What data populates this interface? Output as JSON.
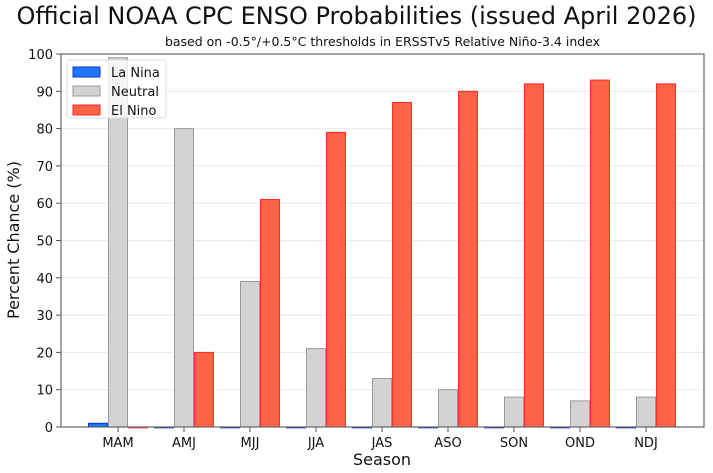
{
  "chart_data": {
    "type": "bar",
    "title": "Official NOAA CPC ENSO Probabilities (issued April 2026)",
    "subtitle": "based on -0.5°/+0.5°C thresholds in ERSSTv5 Relative Niño-3.4 index",
    "xlabel": "Season",
    "ylabel": "Percent Chance (%)",
    "ylim": [
      0,
      100
    ],
    "yticks": [
      0,
      10,
      20,
      30,
      40,
      50,
      60,
      70,
      80,
      90,
      100
    ],
    "grid": true,
    "legend_position": "top-left",
    "categories": [
      "MAM",
      "AMJ",
      "MJJ",
      "JJA",
      "JAS",
      "ASO",
      "SON",
      "OND",
      "NDJ"
    ],
    "series": [
      {
        "name": "La Nina",
        "color": "#1f77ff",
        "edge": "#1030d0",
        "values": [
          1,
          0,
          0,
          0,
          0,
          0,
          0,
          0,
          0
        ]
      },
      {
        "name": "Neutral",
        "color": "#d3d3d3",
        "edge": "#999999",
        "values": [
          99,
          80,
          39,
          21,
          13,
          10,
          8,
          7,
          8
        ]
      },
      {
        "name": "El Nino",
        "color": "#ff6347",
        "edge": "#ff2a2a",
        "values": [
          0,
          20,
          61,
          79,
          87,
          90,
          92,
          93,
          92
        ]
      }
    ]
  }
}
